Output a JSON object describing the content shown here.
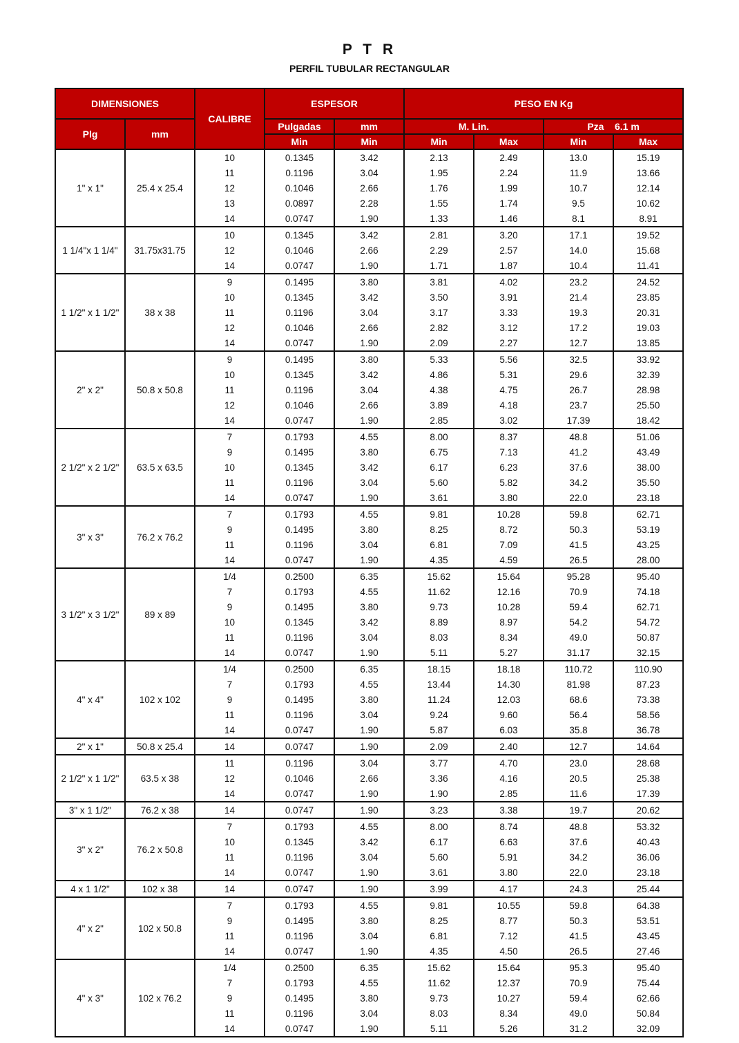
{
  "title": "P T R",
  "subtitle": "PERFIL TUBULAR RECTANGULAR",
  "header": {
    "dimensiones": "DIMENSIONES",
    "calibre": "CALIBRE",
    "espesor": "ESPESOR",
    "peso": "PESO EN Kg",
    "plg": "Plg",
    "mm": "mm",
    "pulgadas": "Pulgadas",
    "espesor_mm": "mm",
    "mlin": "M. Lin.",
    "pza": "Pza    6.1 m",
    "min": "Min",
    "max": "Max"
  },
  "colors": {
    "header_bg": "#c00000",
    "header_text": "#ffffff"
  },
  "groups": [
    {
      "plg": "1\" x 1\"",
      "mm": "25.4 x 25.4",
      "rows": [
        [
          "10",
          "0.1345",
          "3.42",
          "2.13",
          "2.49",
          "13.0",
          "15.19"
        ],
        [
          "11",
          "0.1196",
          "3.04",
          "1.95",
          "2.24",
          "11.9",
          "13.66"
        ],
        [
          "12",
          "0.1046",
          "2.66",
          "1.76",
          "1.99",
          "10.7",
          "12.14"
        ],
        [
          "13",
          "0.0897",
          "2.28",
          "1.55",
          "1.74",
          "9.5",
          "10.62"
        ],
        [
          "14",
          "0.0747",
          "1.90",
          "1.33",
          "1.46",
          "8.1",
          "8.91"
        ]
      ]
    },
    {
      "plg": "1 1/4\"x 1 1/4\"",
      "mm": "31.75x31.75",
      "rows": [
        [
          "10",
          "0.1345",
          "3.42",
          "2.81",
          "3.20",
          "17.1",
          "19.52"
        ],
        [
          "12",
          "0.1046",
          "2.66",
          "2.29",
          "2.57",
          "14.0",
          "15.68"
        ],
        [
          "14",
          "0.0747",
          "1.90",
          "1.71",
          "1.87",
          "10.4",
          "11.41"
        ]
      ]
    },
    {
      "plg": "1 1/2\" x 1 1/2\"",
      "mm": "38 x 38",
      "rows": [
        [
          "9",
          "0.1495",
          "3.80",
          "3.81",
          "4.02",
          "23.2",
          "24.52"
        ],
        [
          "10",
          "0.1345",
          "3.42",
          "3.50",
          "3.91",
          "21.4",
          "23.85"
        ],
        [
          "11",
          "0.1196",
          "3.04",
          "3.17",
          "3.33",
          "19.3",
          "20.31"
        ],
        [
          "12",
          "0.1046",
          "2.66",
          "2.82",
          "3.12",
          "17.2",
          "19.03"
        ],
        [
          "14",
          "0.0747",
          "1.90",
          "2.09",
          "2.27",
          "12.7",
          "13.85"
        ]
      ]
    },
    {
      "plg": "2\" x 2\"",
      "mm": "50.8 x 50.8",
      "rows": [
        [
          "9",
          "0.1495",
          "3.80",
          "5.33",
          "5.56",
          "32.5",
          "33.92"
        ],
        [
          "10",
          "0.1345",
          "3.42",
          "4.86",
          "5.31",
          "29.6",
          "32.39"
        ],
        [
          "11",
          "0.1196",
          "3.04",
          "4.38",
          "4.75",
          "26.7",
          "28.98"
        ],
        [
          "12",
          "0.1046",
          "2.66",
          "3.89",
          "4.18",
          "23.7",
          "25.50"
        ],
        [
          "14",
          "0.0747",
          "1.90",
          "2.85",
          "3.02",
          "17.39",
          "18.42"
        ]
      ]
    },
    {
      "plg": "2 1/2\" x 2 1/2\"",
      "mm": "63.5 x 63.5",
      "rows": [
        [
          "7",
          "0.1793",
          "4.55",
          "8.00",
          "8.37",
          "48.8",
          "51.06"
        ],
        [
          "9",
          "0.1495",
          "3.80",
          "6.75",
          "7.13",
          "41.2",
          "43.49"
        ],
        [
          "10",
          "0.1345",
          "3.42",
          "6.17",
          "6.23",
          "37.6",
          "38.00"
        ],
        [
          "11",
          "0.1196",
          "3.04",
          "5.60",
          "5.82",
          "34.2",
          "35.50"
        ],
        [
          "14",
          "0.0747",
          "1.90",
          "3.61",
          "3.80",
          "22.0",
          "23.18"
        ]
      ]
    },
    {
      "plg": "3\" x 3\"",
      "mm": "76.2 x 76.2",
      "rows": [
        [
          "7",
          "0.1793",
          "4.55",
          "9.81",
          "10.28",
          "59.8",
          "62.71"
        ],
        [
          "9",
          "0.1495",
          "3.80",
          "8.25",
          "8.72",
          "50.3",
          "53.19"
        ],
        [
          "11",
          "0.1196",
          "3.04",
          "6.81",
          "7.09",
          "41.5",
          "43.25"
        ],
        [
          "14",
          "0.0747",
          "1.90",
          "4.35",
          "4.59",
          "26.5",
          "28.00"
        ]
      ]
    },
    {
      "plg": "3 1/2\" x 3 1/2\"",
      "mm": "89 x 89",
      "rows": [
        [
          "1/4",
          "0.2500",
          "6.35",
          "15.62",
          "15.64",
          "95.28",
          "95.40"
        ],
        [
          "7",
          "0.1793",
          "4.55",
          "11.62",
          "12.16",
          "70.9",
          "74.18"
        ],
        [
          "9",
          "0.1495",
          "3.80",
          "9.73",
          "10.28",
          "59.4",
          "62.71"
        ],
        [
          "10",
          "0.1345",
          "3.42",
          "8.89",
          "8.97",
          "54.2",
          "54.72"
        ],
        [
          "11",
          "0.1196",
          "3.04",
          "8.03",
          "8.34",
          "49.0",
          "50.87"
        ],
        [
          "14",
          "0.0747",
          "1.90",
          "5.11",
          "5.27",
          "31.17",
          "32.15"
        ]
      ]
    },
    {
      "plg": "4\" x 4\"",
      "mm": "102 x 102",
      "rows": [
        [
          "1/4",
          "0.2500",
          "6.35",
          "18.15",
          "18.18",
          "110.72",
          "110.90"
        ],
        [
          "7",
          "0.1793",
          "4.55",
          "13.44",
          "14.30",
          "81.98",
          "87.23"
        ],
        [
          "9",
          "0.1495",
          "3.80",
          "11.24",
          "12.03",
          "68.6",
          "73.38"
        ],
        [
          "11",
          "0.1196",
          "3.04",
          "9.24",
          "9.60",
          "56.4",
          "58.56"
        ],
        [
          "14",
          "0.0747",
          "1.90",
          "5.87",
          "6.03",
          "35.8",
          "36.78"
        ]
      ]
    },
    {
      "plg": "2\" x 1\"",
      "mm": "50.8 x 25.4",
      "rows": [
        [
          "14",
          "0.0747",
          "1.90",
          "2.09",
          "2.40",
          "12.7",
          "14.64"
        ]
      ]
    },
    {
      "plg": "2 1/2\" x 1 1/2\"",
      "mm": "63.5 x 38",
      "rows": [
        [
          "11",
          "0.1196",
          "3.04",
          "3.77",
          "4.70",
          "23.0",
          "28.68"
        ],
        [
          "12",
          "0.1046",
          "2.66",
          "3.36",
          "4.16",
          "20.5",
          "25.38"
        ],
        [
          "14",
          "0.0747",
          "1.90",
          "1.90",
          "2.85",
          "11.6",
          "17.39"
        ]
      ]
    },
    {
      "plg": "3\" x 1 1/2\"",
      "mm": "76.2 x 38",
      "rows": [
        [
          "14",
          "0.0747",
          "1.90",
          "3.23",
          "3.38",
          "19.7",
          "20.62"
        ]
      ]
    },
    {
      "plg": "3\" x 2\"",
      "mm": "76.2 x 50.8",
      "rows": [
        [
          "7",
          "0.1793",
          "4.55",
          "8.00",
          "8.74",
          "48.8",
          "53.32"
        ],
        [
          "10",
          "0.1345",
          "3.42",
          "6.17",
          "6.63",
          "37.6",
          "40.43"
        ],
        [
          "11",
          "0.1196",
          "3.04",
          "5.60",
          "5.91",
          "34.2",
          "36.06"
        ],
        [
          "14",
          "0.0747",
          "1.90",
          "3.61",
          "3.80",
          "22.0",
          "23.18"
        ]
      ]
    },
    {
      "plg": "4 x 1 1/2\"",
      "mm": "102 x 38",
      "rows": [
        [
          "14",
          "0.0747",
          "1.90",
          "3.99",
          "4.17",
          "24.3",
          "25.44"
        ]
      ]
    },
    {
      "plg": "4\" x 2\"",
      "mm": "102 x 50.8",
      "rows": [
        [
          "7",
          "0.1793",
          "4.55",
          "9.81",
          "10.55",
          "59.8",
          "64.38"
        ],
        [
          "9",
          "0.1495",
          "3.80",
          "8.25",
          "8.77",
          "50.3",
          "53.51"
        ],
        [
          "11",
          "0.1196",
          "3.04",
          "6.81",
          "7.12",
          "41.5",
          "43.45"
        ],
        [
          "14",
          "0.0747",
          "1.90",
          "4.35",
          "4.50",
          "26.5",
          "27.46"
        ]
      ]
    },
    {
      "plg": "4\" x 3\"",
      "mm": "102 x 76.2",
      "rows": [
        [
          "1/4",
          "0.2500",
          "6.35",
          "15.62",
          "15.64",
          "95.3",
          "95.40"
        ],
        [
          "7",
          "0.1793",
          "4.55",
          "11.62",
          "12.37",
          "70.9",
          "75.44"
        ],
        [
          "9",
          "0.1495",
          "3.80",
          "9.73",
          "10.27",
          "59.4",
          "62.66"
        ],
        [
          "11",
          "0.1196",
          "3.04",
          "8.03",
          "8.34",
          "49.0",
          "50.84"
        ],
        [
          "14",
          "0.0747",
          "1.90",
          "5.11",
          "5.26",
          "31.2",
          "32.09"
        ]
      ]
    }
  ]
}
